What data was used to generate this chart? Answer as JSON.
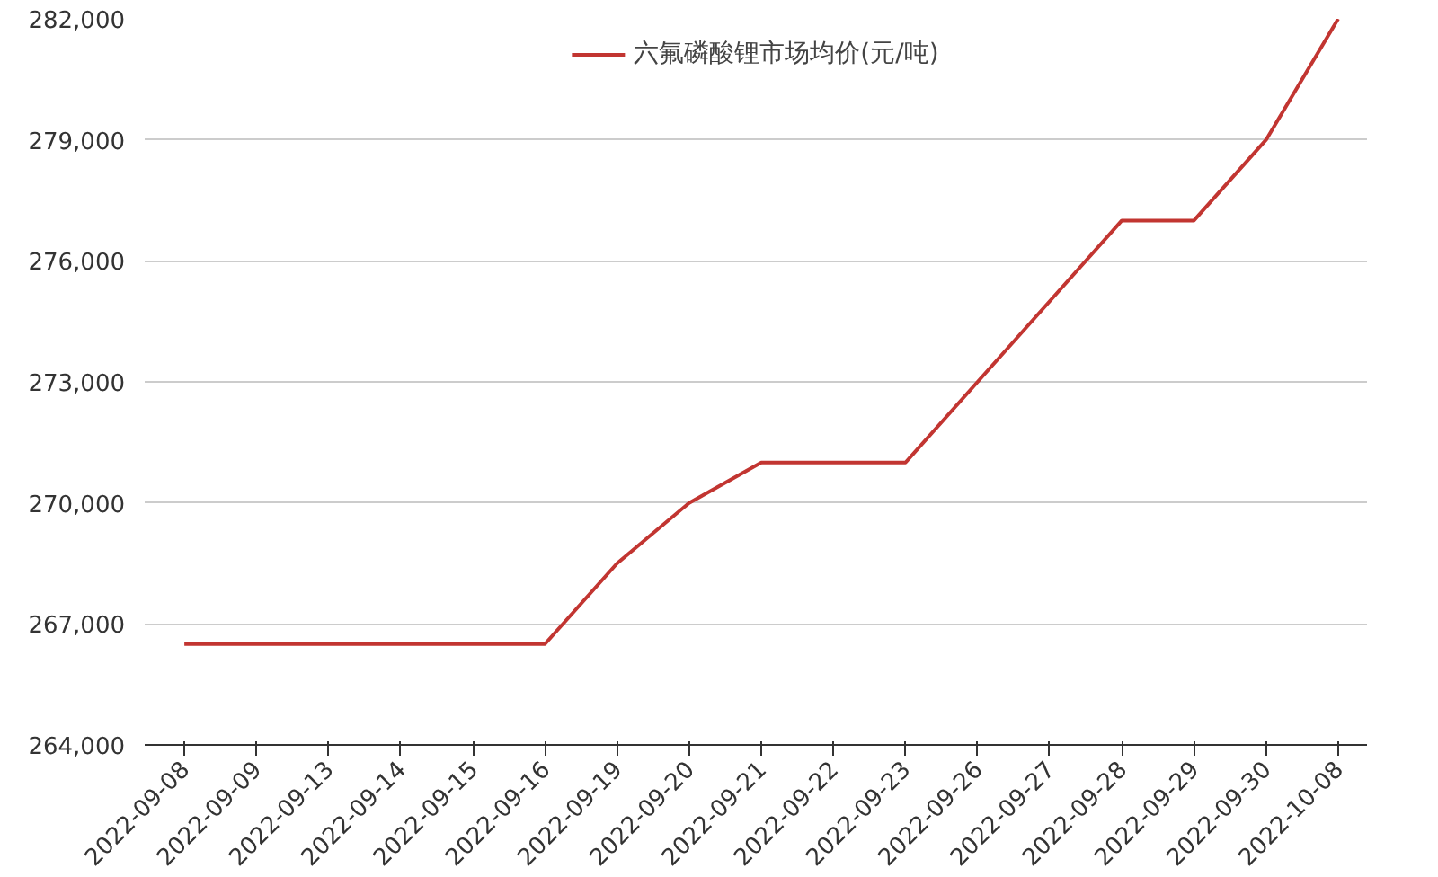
{
  "chart_data": {
    "type": "line",
    "categories": [
      "2022-09-08",
      "2022-09-09",
      "2022-09-13",
      "2022-09-14",
      "2022-09-15",
      "2022-09-16",
      "2022-09-19",
      "2022-09-20",
      "2022-09-21",
      "2022-09-22",
      "2022-09-23",
      "2022-09-26",
      "2022-09-27",
      "2022-09-28",
      "2022-09-29",
      "2022-09-30",
      "2022-10-08"
    ],
    "series": [
      {
        "name": "六氟磷酸锂市场均价(元/吨)",
        "color": "#c23531",
        "values": [
          266500,
          266500,
          266500,
          266500,
          266500,
          266500,
          268500,
          270000,
          271000,
          271000,
          271000,
          273000,
          275000,
          277000,
          277000,
          279000,
          282000
        ]
      }
    ],
    "ylim": [
      264000,
      282000
    ],
    "yticks": [
      {
        "value": 264000,
        "label": "264,000"
      },
      {
        "value": 267000,
        "label": "267,000"
      },
      {
        "value": 270000,
        "label": "270,000"
      },
      {
        "value": 273000,
        "label": "273,000"
      },
      {
        "value": 276000,
        "label": "276,000"
      },
      {
        "value": 279000,
        "label": "279,000"
      },
      {
        "value": 282000,
        "label": "282,000"
      }
    ],
    "grid": "y",
    "legend": "top",
    "line_style": "solid"
  }
}
